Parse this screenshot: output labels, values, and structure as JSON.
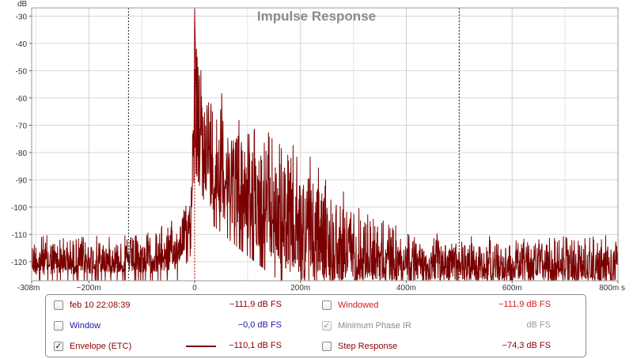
{
  "chart_data": {
    "type": "line",
    "title": "Impulse Response",
    "ylabel": "dB",
    "xlabel": "s",
    "xlim": [
      -308,
      800
    ],
    "ylim": [
      -127,
      -27
    ],
    "y_ticks": [
      -30,
      -40,
      -50,
      -60,
      -70,
      -80,
      -90,
      -100,
      -110,
      -120
    ],
    "x_ticks": [
      {
        "value": -308,
        "label": "-308m"
      },
      {
        "value": -200,
        "label": "−200m"
      },
      {
        "value": 0,
        "label": "0"
      },
      {
        "value": 200,
        "label": "200m"
      },
      {
        "value": 400,
        "label": "400m"
      },
      {
        "value": 600,
        "label": "600m"
      },
      {
        "value": 800,
        "label": "800m s"
      }
    ],
    "x_unit": "ms",
    "grid": true,
    "markers": [
      {
        "x": -125,
        "style": "black-dotted"
      },
      {
        "x": 0,
        "style": "red-dotted"
      },
      {
        "x": 500,
        "style": "black-dotted"
      }
    ],
    "series": [
      {
        "color": "#7a0000",
        "envelope_top": [
          [
            -308,
            -109
          ],
          [
            -125,
            -110
          ],
          [
            -40,
            -104
          ],
          [
            -8,
            -95
          ],
          [
            0,
            -27
          ],
          [
            8,
            -45
          ],
          [
            100,
            -62
          ],
          [
            200,
            -78
          ],
          [
            300,
            -95
          ],
          [
            400,
            -108
          ],
          [
            500,
            -110
          ],
          [
            800,
            -110
          ]
        ],
        "envelope_bottom": [
          [
            -308,
            -125
          ],
          [
            -40,
            -124
          ],
          [
            -8,
            -112
          ],
          [
            0,
            -80
          ],
          [
            30,
            -100
          ],
          [
            100,
            -112
          ],
          [
            200,
            -127
          ],
          [
            800,
            -127
          ]
        ],
        "peak": {
          "x": 0,
          "y": -27
        }
      }
    ]
  },
  "legend": {
    "rows": [
      {
        "checked": false,
        "label": "feb 10 22:08:39",
        "label_color": "#8b0000",
        "value": "−111,9 dB FS",
        "value_color": "#8b0000",
        "swatch": false
      },
      {
        "checked": false,
        "label": "Window",
        "label_color": "#1a1aa6",
        "value": "−0,0 dB FS",
        "value_color": "#1a1aa6",
        "swatch": false
      },
      {
        "checked": true,
        "label": "Envelope (ETC)",
        "label_color": "#8b0000",
        "value": "−110,1 dB FS",
        "value_color": "#8b0000",
        "swatch": true
      },
      {
        "checked": false,
        "label": "Windowed",
        "label_color": "#d41a1a",
        "value": "−111,9 dB FS",
        "value_color": "#d41a1a",
        "swatch": false
      },
      {
        "checked": true,
        "dim": true,
        "label": "Minimum Phase IR",
        "label_color": "#8a8a8a",
        "value": "dB FS",
        "value_color": "#9a9a9a",
        "swatch": false
      },
      {
        "checked": false,
        "label": "Step Response",
        "label_color": "#8b0000",
        "value": "−74,3 dB FS",
        "value_color": "#8b0000",
        "swatch": false
      }
    ]
  }
}
